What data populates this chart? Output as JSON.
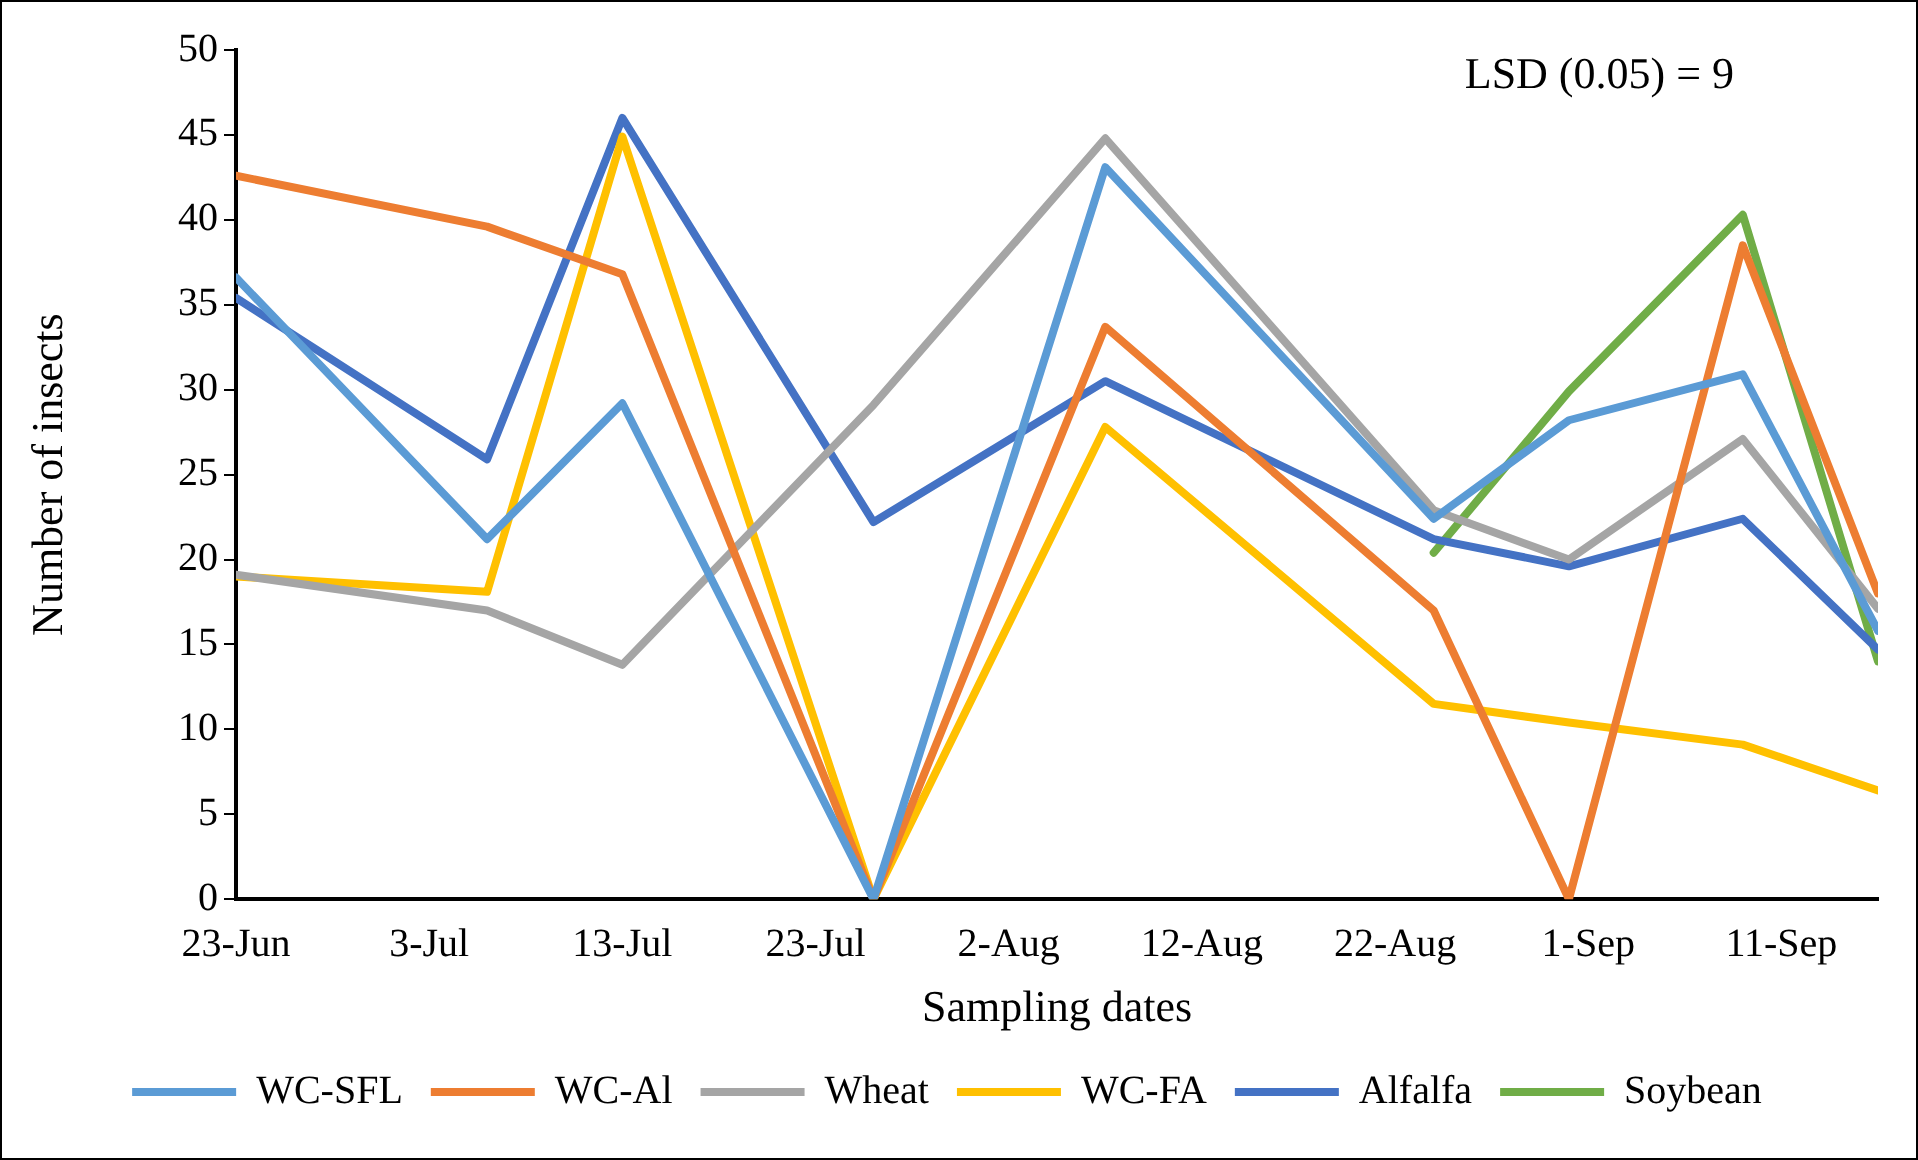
{
  "chart_data": {
    "type": "line",
    "xlabel": "Sampling dates",
    "ylabel": "Number of insects",
    "x": [
      "--06-23",
      "--07-06",
      "--07-13",
      "--07-26",
      "--08-07",
      "--08-24",
      "--08-31",
      "--09-09",
      "--09-16"
    ],
    "xlim": [
      "--06-23",
      "--09-16"
    ],
    "xticks": [
      {
        "value": "--06-23",
        "label": "23-Jun"
      },
      {
        "value": "--07-03",
        "label": "3-Jul"
      },
      {
        "value": "--07-13",
        "label": "13-Jul"
      },
      {
        "value": "--07-23",
        "label": "23-Jul"
      },
      {
        "value": "--08-02",
        "label": "2-Aug"
      },
      {
        "value": "--08-12",
        "label": "12-Aug"
      },
      {
        "value": "--08-22",
        "label": "22-Aug"
      },
      {
        "value": "--09-01",
        "label": "1-Sep"
      },
      {
        "value": "--09-11",
        "label": "11-Sep"
      }
    ],
    "ylim": [
      0,
      50
    ],
    "yticks": [
      0,
      5,
      10,
      15,
      20,
      25,
      30,
      35,
      40,
      45,
      50
    ],
    "series": [
      {
        "name": "WC-SFL",
        "color": "#5b9bd5",
        "values": [
          36.6,
          21.2,
          29.2,
          0,
          43.1,
          22.4,
          28.2,
          30.9,
          15.8
        ]
      },
      {
        "name": "WC-Al",
        "color": "#ed7d31",
        "values": [
          42.6,
          39.6,
          36.8,
          0,
          33.7,
          17.0,
          0,
          38.5,
          18.0
        ]
      },
      {
        "name": "Wheat",
        "color": "#a5a5a5",
        "values": [
          19.1,
          17.0,
          13.8,
          29.1,
          44.8,
          22.9,
          20.0,
          27.1,
          17.1
        ]
      },
      {
        "name": "WC-FA",
        "color": "#ffc000",
        "values": [
          19.0,
          18.1,
          44.9,
          0,
          27.8,
          11.5,
          10.4,
          9.1,
          6.4
        ]
      },
      {
        "name": "Alfalfa",
        "color": "#4472c4",
        "values": [
          35.4,
          25.9,
          46.0,
          22.2,
          30.5,
          21.2,
          19.6,
          22.4,
          14.7
        ]
      },
      {
        "name": "Soybean",
        "color": "#70ad47",
        "values": [
          null,
          null,
          null,
          null,
          null,
          20.4,
          29.9,
          40.3,
          14.0
        ]
      }
    ],
    "annotations": [
      "LSD (0.05) = 9"
    ],
    "legend": "bottom",
    "marker": "none"
  }
}
